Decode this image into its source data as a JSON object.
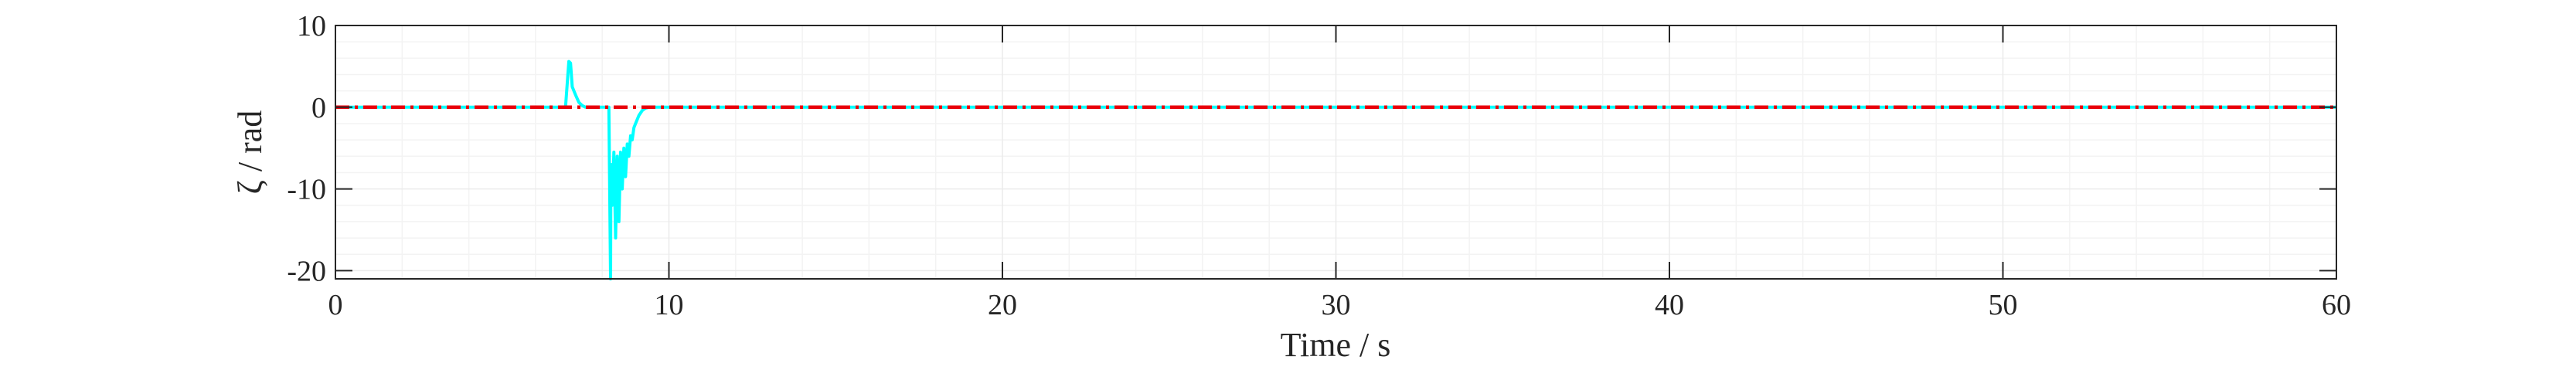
{
  "chart_data": {
    "type": "line",
    "title": "",
    "xlabel": "Time / s",
    "ylabel": "ζ / rad",
    "xlim": [
      0,
      60
    ],
    "ylim": [
      -21,
      10
    ],
    "xticks": [
      0,
      10,
      20,
      30,
      40,
      50,
      60
    ],
    "yticks": [
      -20,
      -10,
      0,
      10
    ],
    "grid": true,
    "legend": "none",
    "colors": {
      "measured": "#00ffff",
      "reference": "#e8000b",
      "axes": "#262626",
      "grid": "#ebebeb"
    },
    "series": [
      {
        "style": "solid",
        "color": "#00ffff",
        "x": [
          0,
          6.9,
          7.0,
          7.05,
          7.1,
          7.2,
          7.3,
          7.4,
          7.5,
          8.2,
          8.25,
          8.26,
          8.3,
          8.35,
          8.4,
          8.45,
          8.5,
          8.55,
          8.6,
          8.65,
          8.7,
          8.75,
          8.8,
          8.85,
          8.9,
          8.95,
          9.0,
          9.1,
          9.2,
          9.3,
          9.4,
          60
        ],
        "y": [
          0,
          0,
          5.6,
          5.4,
          2.5,
          1.5,
          0.6,
          0.2,
          0,
          0,
          -21,
          -7,
          -12,
          -5.5,
          -16,
          -6,
          -14,
          -5.5,
          -10,
          -5,
          -8.5,
          -4.5,
          -6,
          -3.5,
          -4,
          -2.5,
          -2,
          -1,
          -0.4,
          -0.1,
          0,
          0
        ]
      },
      {
        "style": "dash-dot",
        "color": "#e8000b",
        "x": [
          0,
          60
        ],
        "y": [
          0,
          0
        ]
      }
    ]
  }
}
